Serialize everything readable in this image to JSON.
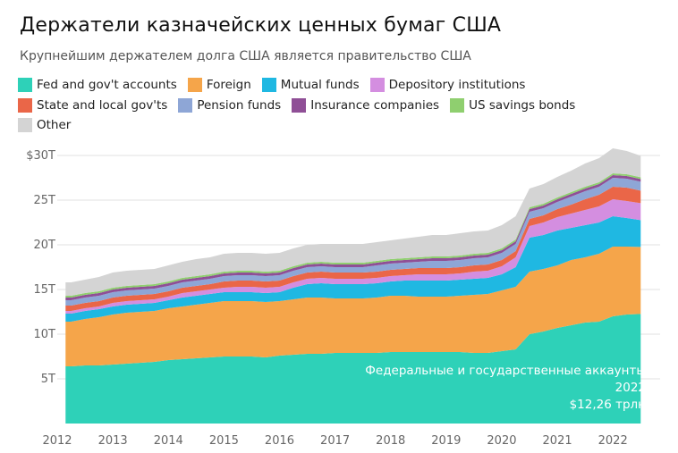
{
  "title": "Держатели казначейских ценных бумаг США",
  "subtitle": "Крупнейшим держателем долга США является правительство США",
  "chart_data": {
    "type": "area",
    "stacked": true,
    "x_ticks": [
      "2012",
      "2013",
      "2014",
      "2015",
      "2016",
      "2017",
      "2018",
      "2019",
      "2020",
      "2021",
      "2022"
    ],
    "y_ticks": [
      "$30T",
      "25T",
      "20T",
      "15T",
      "10T",
      "5T"
    ],
    "ylim": [
      0,
      30
    ],
    "y_unit": "trillion USD",
    "grid": true,
    "legend_position": "top",
    "x": [
      2012.25,
      2012.5,
      2012.75,
      2013.0,
      2013.25,
      2013.5,
      2013.75,
      2014.0,
      2014.25,
      2014.5,
      2014.75,
      2015.0,
      2015.25,
      2015.5,
      2015.75,
      2016.0,
      2016.25,
      2016.5,
      2016.75,
      2017.0,
      2017.25,
      2017.5,
      2017.75,
      2018.0,
      2018.25,
      2018.5,
      2018.75,
      2019.0,
      2019.25,
      2019.5,
      2019.75,
      2020.0,
      2020.25,
      2020.5,
      2020.75,
      2021.0,
      2021.25,
      2021.5,
      2021.75,
      2022.0,
      2022.25,
      2022.5
    ],
    "series": [
      {
        "name": "Fed and gov't accounts",
        "color": "#2ed1b8",
        "values": [
          6.4,
          6.5,
          6.5,
          6.6,
          6.7,
          6.8,
          6.9,
          7.1,
          7.2,
          7.3,
          7.4,
          7.5,
          7.5,
          7.5,
          7.4,
          7.6,
          7.7,
          7.8,
          7.8,
          7.9,
          7.9,
          7.9,
          7.9,
          8.0,
          8.0,
          8.0,
          8.0,
          8.0,
          8.0,
          7.9,
          7.9,
          8.1,
          8.3,
          10.0,
          10.3,
          10.7,
          11.0,
          11.3,
          11.4,
          12.0,
          12.2,
          12.26
        ]
      },
      {
        "name": "Foreign",
        "color": "#f5a54a",
        "values": [
          5.0,
          5.2,
          5.4,
          5.6,
          5.7,
          5.7,
          5.7,
          5.8,
          5.9,
          6.0,
          6.1,
          6.2,
          6.2,
          6.2,
          6.2,
          6.1,
          6.2,
          6.3,
          6.3,
          6.1,
          6.1,
          6.1,
          6.2,
          6.3,
          6.3,
          6.2,
          6.2,
          6.2,
          6.3,
          6.5,
          6.6,
          6.8,
          7.0,
          7.0,
          7.0,
          7.0,
          7.3,
          7.3,
          7.6,
          7.8,
          7.6,
          7.5
        ]
      },
      {
        "name": "Mutual funds",
        "color": "#1fb8e2",
        "values": [
          0.9,
          0.9,
          0.9,
          0.9,
          0.9,
          0.9,
          0.9,
          0.9,
          1.0,
          1.0,
          1.0,
          1.0,
          1.0,
          1.0,
          1.0,
          1.0,
          1.3,
          1.5,
          1.6,
          1.6,
          1.6,
          1.6,
          1.6,
          1.6,
          1.7,
          1.8,
          1.8,
          1.8,
          1.8,
          1.8,
          1.8,
          1.8,
          2.2,
          3.8,
          3.8,
          3.9,
          3.6,
          3.6,
          3.5,
          3.4,
          3.2,
          3.0
        ]
      },
      {
        "name": "Depository institutions",
        "color": "#d48ee0",
        "values": [
          0.3,
          0.3,
          0.3,
          0.4,
          0.4,
          0.4,
          0.4,
          0.4,
          0.5,
          0.5,
          0.5,
          0.5,
          0.6,
          0.6,
          0.6,
          0.6,
          0.6,
          0.6,
          0.6,
          0.6,
          0.6,
          0.6,
          0.6,
          0.6,
          0.6,
          0.7,
          0.7,
          0.7,
          0.7,
          0.8,
          0.8,
          0.9,
          1.1,
          1.3,
          1.4,
          1.5,
          1.6,
          1.7,
          1.8,
          1.9,
          1.9,
          1.9
        ]
      },
      {
        "name": "State and local gov'ts",
        "color": "#ea6648",
        "values": [
          0.6,
          0.6,
          0.6,
          0.6,
          0.6,
          0.6,
          0.6,
          0.6,
          0.6,
          0.6,
          0.6,
          0.7,
          0.7,
          0.7,
          0.7,
          0.7,
          0.7,
          0.7,
          0.7,
          0.7,
          0.7,
          0.7,
          0.7,
          0.7,
          0.7,
          0.7,
          0.7,
          0.7,
          0.7,
          0.7,
          0.7,
          0.7,
          0.7,
          0.8,
          0.8,
          0.9,
          1.0,
          1.2,
          1.3,
          1.4,
          1.5,
          1.4
        ]
      },
      {
        "name": "Pension funds",
        "color": "#8ea6d6",
        "values": [
          0.6,
          0.6,
          0.6,
          0.6,
          0.6,
          0.6,
          0.6,
          0.6,
          0.6,
          0.6,
          0.6,
          0.6,
          0.6,
          0.6,
          0.6,
          0.6,
          0.6,
          0.6,
          0.6,
          0.6,
          0.6,
          0.6,
          0.7,
          0.7,
          0.7,
          0.7,
          0.8,
          0.8,
          0.8,
          0.8,
          0.8,
          0.8,
          0.8,
          0.8,
          0.8,
          0.8,
          0.9,
          0.9,
          0.9,
          1.0,
          1.0,
          1.0
        ]
      },
      {
        "name": "Insurance companies",
        "color": "#8f4f96",
        "values": [
          0.3,
          0.3,
          0.3,
          0.3,
          0.3,
          0.3,
          0.3,
          0.3,
          0.3,
          0.3,
          0.3,
          0.3,
          0.3,
          0.3,
          0.3,
          0.3,
          0.3,
          0.3,
          0.3,
          0.3,
          0.3,
          0.3,
          0.3,
          0.3,
          0.3,
          0.3,
          0.3,
          0.3,
          0.3,
          0.3,
          0.3,
          0.3,
          0.3,
          0.3,
          0.3,
          0.3,
          0.3,
          0.3,
          0.3,
          0.3,
          0.3,
          0.3
        ]
      },
      {
        "name": "US savings bonds",
        "color": "#8fcf6f",
        "values": [
          0.2,
          0.2,
          0.2,
          0.2,
          0.2,
          0.2,
          0.2,
          0.2,
          0.2,
          0.2,
          0.2,
          0.2,
          0.2,
          0.2,
          0.2,
          0.2,
          0.2,
          0.2,
          0.2,
          0.2,
          0.2,
          0.2,
          0.2,
          0.2,
          0.2,
          0.2,
          0.2,
          0.2,
          0.2,
          0.2,
          0.2,
          0.2,
          0.2,
          0.2,
          0.2,
          0.2,
          0.2,
          0.2,
          0.2,
          0.2,
          0.2,
          0.2
        ]
      },
      {
        "name": "Other",
        "color": "#d4d4d4",
        "values": [
          1.5,
          1.5,
          1.6,
          1.7,
          1.7,
          1.7,
          1.7,
          1.8,
          1.8,
          1.9,
          1.9,
          2.0,
          2.0,
          2.0,
          2.0,
          2.0,
          2.0,
          2.0,
          2.0,
          2.1,
          2.1,
          2.1,
          2.1,
          2.1,
          2.2,
          2.3,
          2.4,
          2.4,
          2.5,
          2.5,
          2.5,
          2.6,
          2.6,
          2.1,
          2.2,
          2.3,
          2.4,
          2.6,
          2.7,
          2.8,
          2.6,
          2.4
        ]
      }
    ],
    "annotation": {
      "line1": "Федеральные и государственные аккаунты",
      "line2": "2022",
      "line3": "$12,26 трлн"
    }
  }
}
